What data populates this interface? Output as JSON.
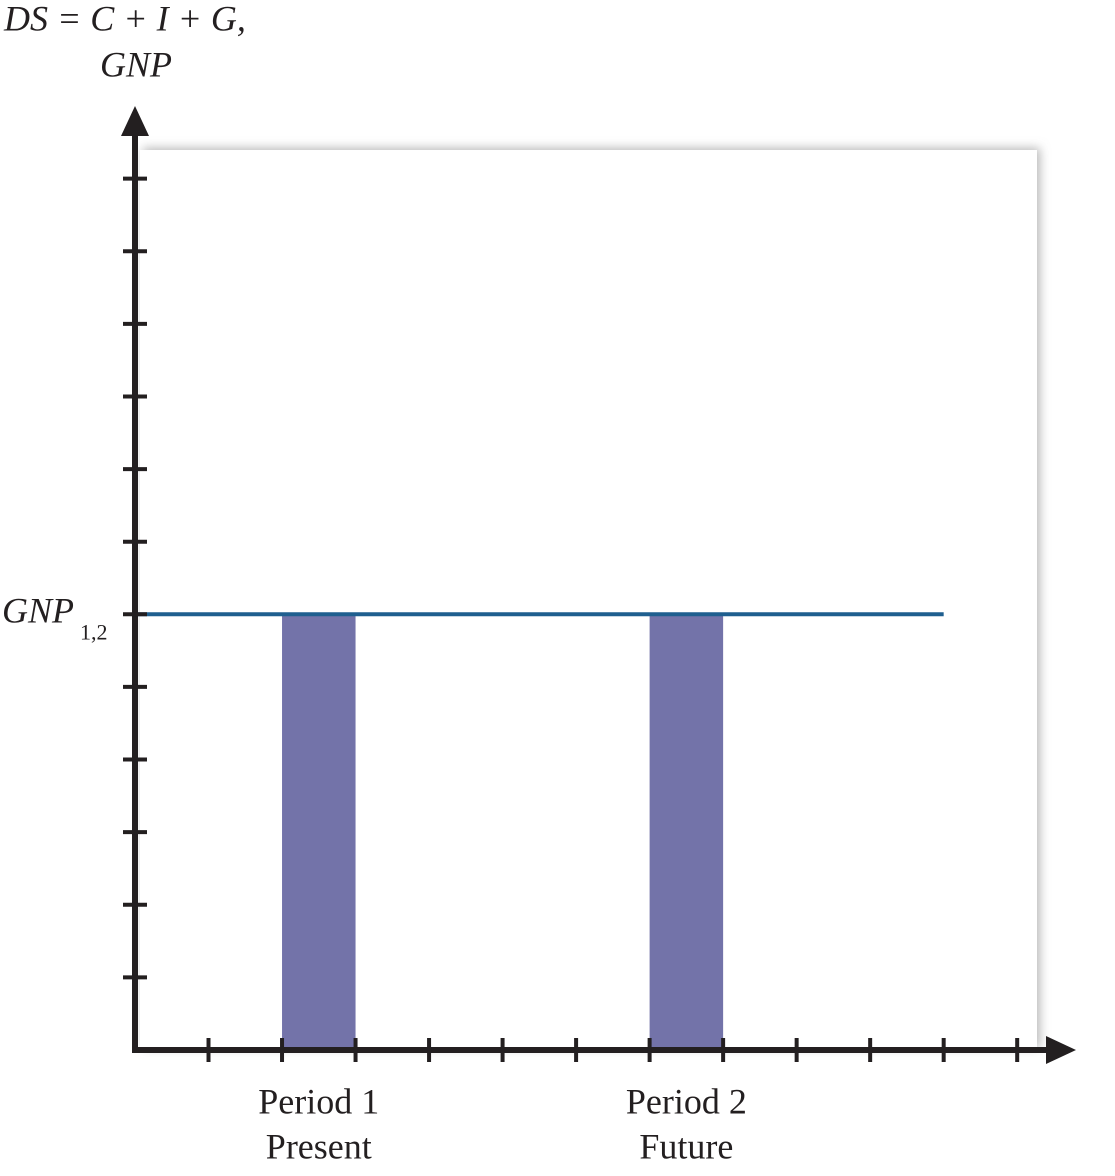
{
  "chart_data": {
    "type": "bar",
    "y_label": [
      "DS = C + I + G,",
      "GNP"
    ],
    "categories": [
      "Period 1",
      "Period 2"
    ],
    "sublabels": [
      "Present",
      "Future"
    ],
    "x_edges": [
      [
        2,
        3
      ],
      [
        7,
        8
      ]
    ],
    "values": [
      6,
      6
    ],
    "color": "#7373a9",
    "xlim": [
      0,
      12.8
    ],
    "ylim": [
      0,
      13
    ],
    "xticks": [
      1,
      2,
      3,
      4,
      5,
      6,
      7,
      8,
      9,
      10,
      11,
      12
    ],
    "yticks": [
      1,
      2,
      3,
      4,
      5,
      6,
      7,
      8,
      9,
      10,
      11,
      12
    ],
    "hline": {
      "value": 6,
      "x": [
        0,
        11
      ],
      "label": "GNP",
      "subscript": "1,2",
      "color": "#1f5f8f"
    }
  }
}
